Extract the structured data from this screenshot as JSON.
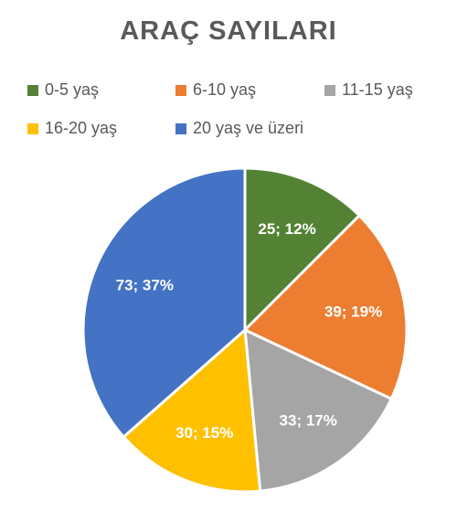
{
  "chart_data": {
    "type": "pie",
    "title": "ARAÇ SAYILARI",
    "slices": [
      {
        "name": "0-5 yaş",
        "value": 25,
        "percent": "12%",
        "label": "25; 12%",
        "color": "#548235"
      },
      {
        "name": "6-10 yaş",
        "value": 39,
        "percent": "19%",
        "label": "39; 19%",
        "color": "#ED7D31"
      },
      {
        "name": "11-15 yaş",
        "value": 33,
        "percent": "17%",
        "label": "33; 17%",
        "color": "#A5A5A5"
      },
      {
        "name": "16-20 yaş",
        "value": 30,
        "percent": "15%",
        "label": "30; 15%",
        "color": "#FFC000"
      },
      {
        "name": "20 yaş ve üzeri",
        "value": 73,
        "percent": "37%",
        "label": "73; 37%",
        "color": "#4472C4"
      }
    ],
    "legend_position": "top"
  }
}
